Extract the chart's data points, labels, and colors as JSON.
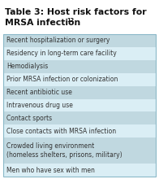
{
  "title_line1": "Table 3: Host risk factors for",
  "title_line2": "MRSA infection",
  "superscript": "12",
  "rows": [
    "Recent hospitalization or surgery",
    "Residency in long-term care facility",
    "Hemodialysis",
    "Prior MRSA infection or colonization",
    "Recent antibiotic use",
    "Intravenous drug use",
    "Contact sports",
    "Close contacts with MRSA infection",
    "Crowded living environment\n(homeless shelters, prisons, military)",
    "Men who have sex with men"
  ],
  "row_colors_alt": [
    "#c0d8e0",
    "#daeef5"
  ],
  "border_color": "#8ab8c8",
  "bg_color": "#ffffff",
  "title_color": "#111111",
  "text_color": "#333333",
  "title_fontsize": 7.8,
  "row_fontsize": 5.5,
  "superscript_fontsize": 4.8
}
